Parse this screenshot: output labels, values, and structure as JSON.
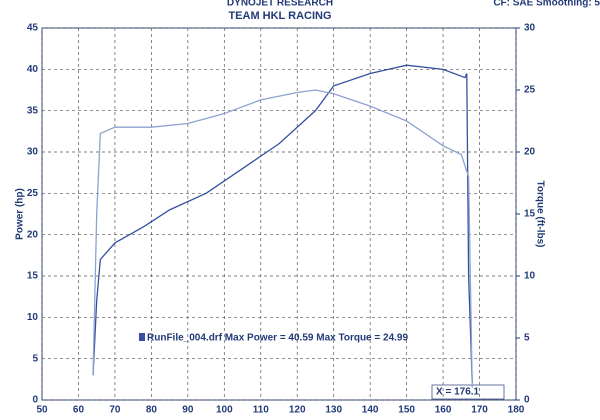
{
  "chart_data": {
    "type": "line",
    "title": "DYNOJET RESEARCH",
    "subtitle": "TEAM HKL RACING",
    "corner_note": "CF: SAE  Smoothing: 5",
    "y_label": "Power (hp)",
    "y2_label": "Torque (ft-lbs)",
    "annotation": "RunFile_004.drf Max Power = 40.59    Max Torque = 24.99",
    "cursor_label": "X = 176.1",
    "xlim": [
      50,
      180
    ],
    "xticks": [
      50,
      60,
      70,
      80,
      90,
      100,
      110,
      120,
      130,
      140,
      150,
      160,
      170,
      180
    ],
    "ylim": [
      0,
      45
    ],
    "yticks": [
      0,
      5,
      10,
      15,
      20,
      25,
      30,
      35,
      40,
      45
    ],
    "y2lim": [
      0,
      30
    ],
    "y2ticks": [
      0,
      5,
      10,
      15,
      20,
      25,
      30
    ],
    "grid": true,
    "series": [
      {
        "color": "#3550a0",
        "axis": "y",
        "x": [
          64,
          65,
          66,
          70,
          78,
          85,
          95,
          105,
          115,
          125,
          130,
          140,
          150,
          160,
          166,
          166.5,
          167,
          168
        ],
        "values": [
          3,
          12,
          17,
          19,
          21,
          23,
          25,
          28,
          31,
          35,
          38,
          39.5,
          40.5,
          40,
          39,
          39.5,
          15,
          2
        ]
      },
      {
        "color": "#8da2cf",
        "axis": "y2",
        "x": [
          64,
          65,
          66,
          70,
          80,
          90,
          100,
          110,
          120,
          125,
          130,
          140,
          150,
          160,
          165,
          167,
          168
        ],
        "values": [
          2,
          15,
          21.5,
          22,
          22,
          22.3,
          23.1,
          24.2,
          24.8,
          25,
          24.7,
          23.7,
          22.5,
          20.5,
          19.8,
          18,
          1
        ]
      }
    ]
  }
}
